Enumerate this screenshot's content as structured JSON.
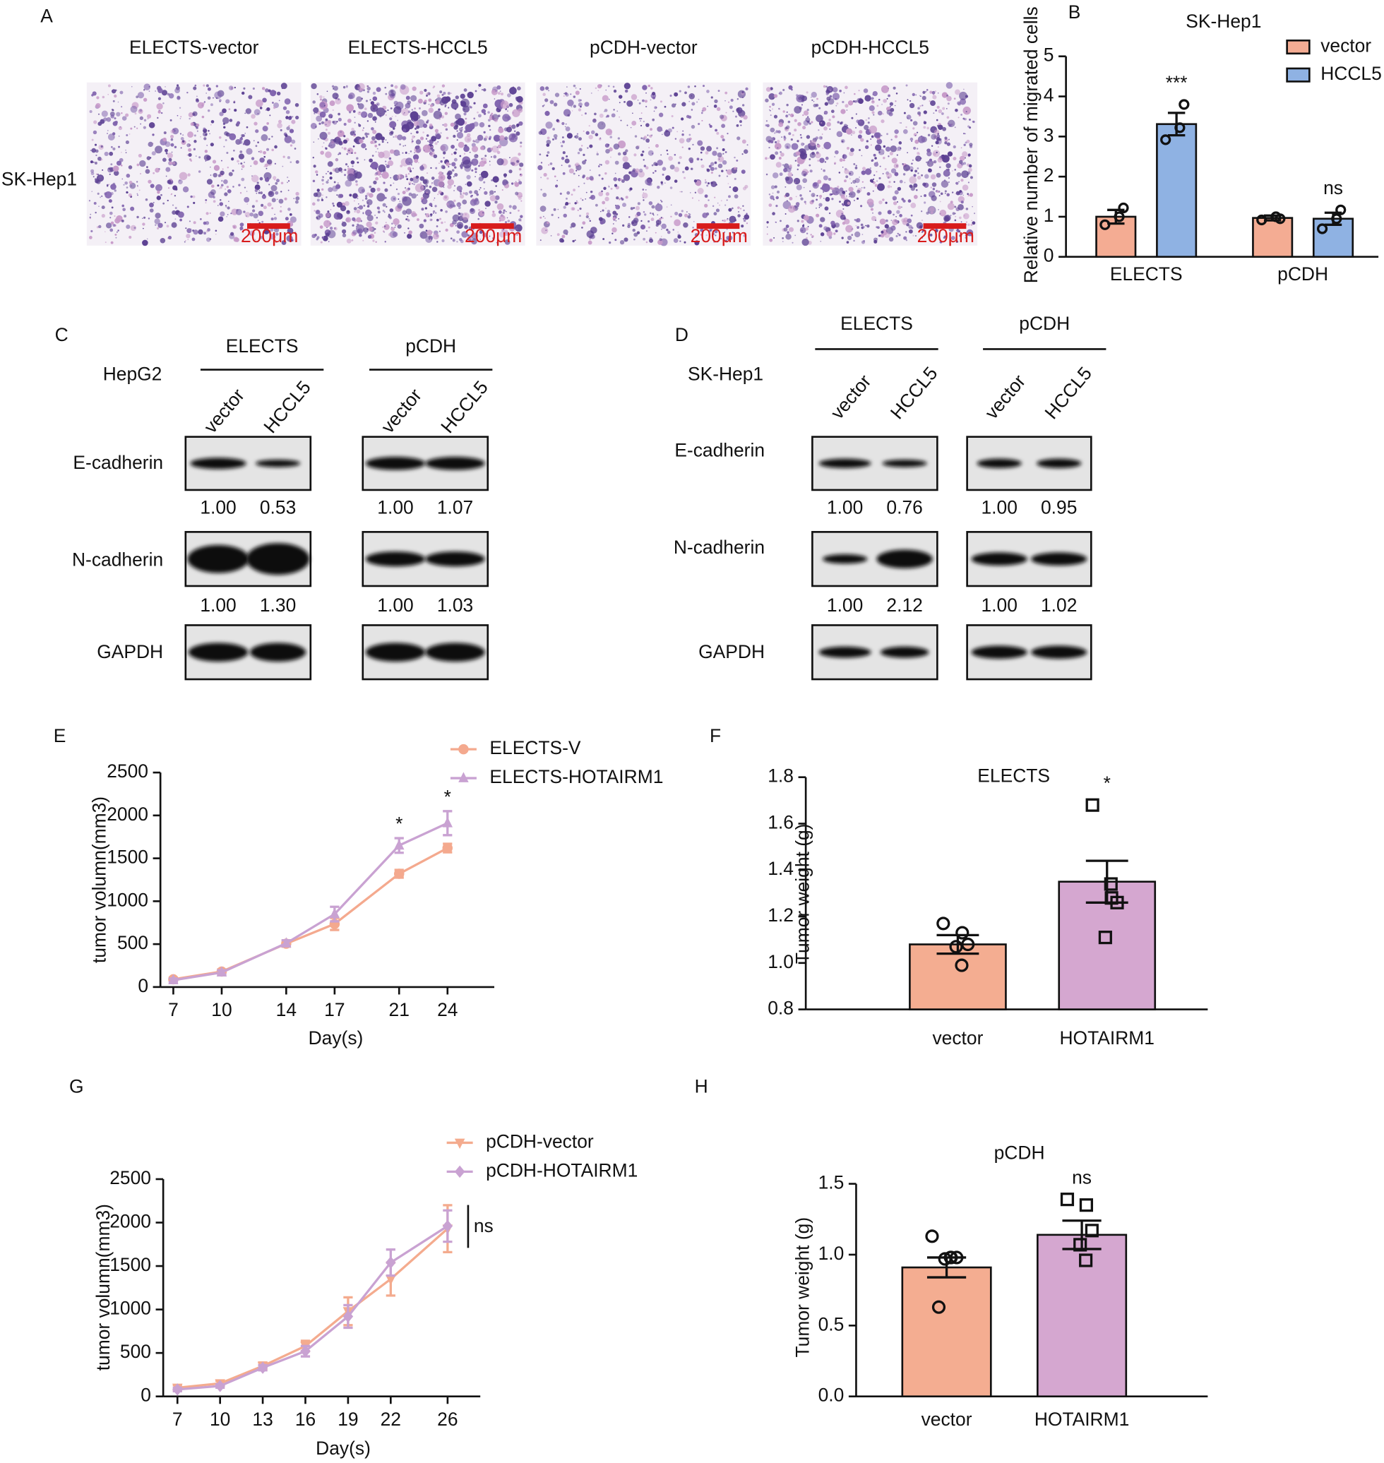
{
  "panel_labels": [
    "A",
    "B",
    "C",
    "D",
    "E",
    "F",
    "G",
    "H"
  ],
  "micrographs": {
    "row_label": "SK-Hep1",
    "columns": [
      "ELECTS-vector",
      "ELECTS-HCCL5",
      "pCDH-vector",
      "pCDH-HCCL5"
    ],
    "scale_bar": "200μm"
  },
  "western_blots": [
    {
      "cell_line": "HepG2",
      "groups": [
        "ELECTS",
        "pCDH"
      ],
      "lanes": [
        "vector",
        "HCCL5"
      ],
      "rows": [
        {
          "protein": "E-cadherin",
          "values": [
            "1.00",
            "0.53",
            "1.00",
            "1.07"
          ]
        },
        {
          "protein": "N-cadherin",
          "values": [
            "1.00",
            "1.30",
            "1.00",
            "1.03"
          ]
        },
        {
          "protein": "GAPDH"
        }
      ]
    },
    {
      "cell_line": "SK-Hep1",
      "groups": [
        "ELECTS",
        "pCDH"
      ],
      "lanes": [
        "vector",
        "HCCL5"
      ],
      "rows": [
        {
          "protein": "E-cadherin",
          "values": [
            "1.00",
            "0.76",
            "1.00",
            "0.95"
          ]
        },
        {
          "protein": "N-cadherin",
          "values": [
            "1.00",
            "2.12",
            "1.00",
            "1.02"
          ]
        },
        {
          "protein": "GAPDH"
        }
      ]
    }
  ],
  "chart_data": [
    {
      "type": "bar",
      "title": "SK-Hep1",
      "y_label": "Relative number of migrated cells",
      "categories": [
        "ELECTS",
        "pCDH"
      ],
      "series": [
        {
          "name": "vector",
          "color": "#f4ac93",
          "values": [
            1.0,
            0.97
          ],
          "errors": [
            0.17,
            0.06
          ],
          "points": [
            [
              0.8,
              1.0,
              1.22
            ],
            [
              0.92,
              1.0,
              0.95
            ]
          ]
        },
        {
          "name": "HCCL5",
          "color": "#8fb2e3",
          "values": [
            3.31,
            0.95
          ],
          "errors": [
            0.28,
            0.15
          ],
          "points": [
            [
              2.92,
              3.22,
              3.8
            ],
            [
              0.7,
              0.95,
              1.17
            ]
          ],
          "annotations": [
            "***",
            "ns"
          ]
        }
      ],
      "ylim": [
        0,
        5
      ],
      "yticks": [
        0,
        1,
        2,
        3,
        4,
        5
      ],
      "legend": "upper right"
    },
    {
      "type": "line",
      "x_label": "Day(s)",
      "y_label": "tumor volumn(mm3)",
      "x": [
        7,
        10,
        14,
        17,
        21,
        24
      ],
      "series": [
        {
          "name": "ELECTS-V",
          "color": "#f4a98e",
          "marker": "circle",
          "values": [
            90,
            180,
            505,
            735,
            1320,
            1620
          ],
          "errors": [
            20,
            25,
            35,
            70,
            45,
            50
          ]
        },
        {
          "name": "ELECTS-HOTAIRM1",
          "color": "#c9a2d2",
          "marker": "triangle",
          "values": [
            80,
            170,
            510,
            850,
            1650,
            1910
          ],
          "errors": [
            20,
            25,
            35,
            85,
            85,
            140
          ],
          "annotations": [
            null,
            null,
            null,
            null,
            "*",
            "*"
          ]
        }
      ],
      "xlim": [
        6.2,
        26.9
      ],
      "xticks": [
        7,
        10,
        14,
        17,
        21,
        24
      ],
      "ylim": [
        0,
        2500
      ],
      "yticks": [
        0,
        500,
        1000,
        1500,
        2000,
        2500
      ],
      "legend": "upper right"
    },
    {
      "type": "bar",
      "title": "ELECTS",
      "x_label": null,
      "y_label": "Tumor weight (g)",
      "categories": [
        "vector",
        "HOTAIRM1"
      ],
      "colors": [
        "#f4ad91",
        "#d5a7d0"
      ],
      "values": [
        1.08,
        1.35
      ],
      "errors": [
        0.04,
        0.09
      ],
      "points": [
        [
          1.17,
          1.13,
          1.08,
          1.07,
          0.99
        ],
        [
          1.68,
          1.28,
          1.26,
          1.11,
          1.34
        ]
      ],
      "point_markers": [
        "circle",
        "square"
      ],
      "annotations": [
        null,
        "*"
      ],
      "ylim": [
        0.8,
        1.8
      ],
      "yticks": [
        0.8,
        {
          "value": 1,
          "label": "1.0"
        },
        1.2,
        1.4,
        1.6,
        1.8
      ]
    },
    {
      "type": "line",
      "x_label": "Day(s)",
      "y_label": "tumor volumn(mm3)",
      "x": [
        7,
        10,
        13,
        16,
        19,
        22,
        26
      ],
      "series": [
        {
          "name": "pCDH-vector",
          "color": "#f4ab8e",
          "marker": "triangle-down",
          "values": [
            100,
            150,
            350,
            580,
            980,
            1350,
            1930
          ],
          "errors": [
            30,
            30,
            40,
            60,
            160,
            190,
            270
          ]
        },
        {
          "name": "pCDH-HOTAIRM1",
          "color": "#c9a2d2",
          "marker": "diamond",
          "values": [
            80,
            120,
            330,
            520,
            920,
            1540,
            1960
          ],
          "errors": [
            20,
            20,
            30,
            60,
            130,
            150,
            180
          ]
        }
      ],
      "annotation": "ns",
      "xlim": [
        6,
        28.3
      ],
      "xticks": [
        7,
        10,
        13,
        16,
        19,
        22,
        26
      ],
      "ylim": [
        0,
        2500
      ],
      "yticks": [
        0,
        500,
        1000,
        1500,
        2000,
        2500
      ],
      "legend": "upper right"
    },
    {
      "type": "bar",
      "title": "pCDH",
      "y_label": "Tumor weight (g)",
      "categories": [
        "vector",
        "HOTAIRM1"
      ],
      "colors": [
        "#f4ad91",
        "#d5a7d0"
      ],
      "values": [
        0.91,
        1.14
      ],
      "errors": [
        0.07,
        0.1
      ],
      "points": [
        [
          1.13,
          0.98,
          0.98,
          0.97,
          0.98,
          0.63
        ],
        [
          1.39,
          1.35,
          1.17,
          1.07,
          0.96
        ]
      ],
      "point_markers": [
        "circle",
        "square"
      ],
      "annotations": [
        null,
        "ns"
      ],
      "ylim": [
        0,
        1.5
      ],
      "yticks": [
        {
          "value": 0,
          "label": "0.0"
        },
        0.5,
        {
          "value": 1,
          "label": "1.0"
        },
        1.5
      ]
    }
  ]
}
